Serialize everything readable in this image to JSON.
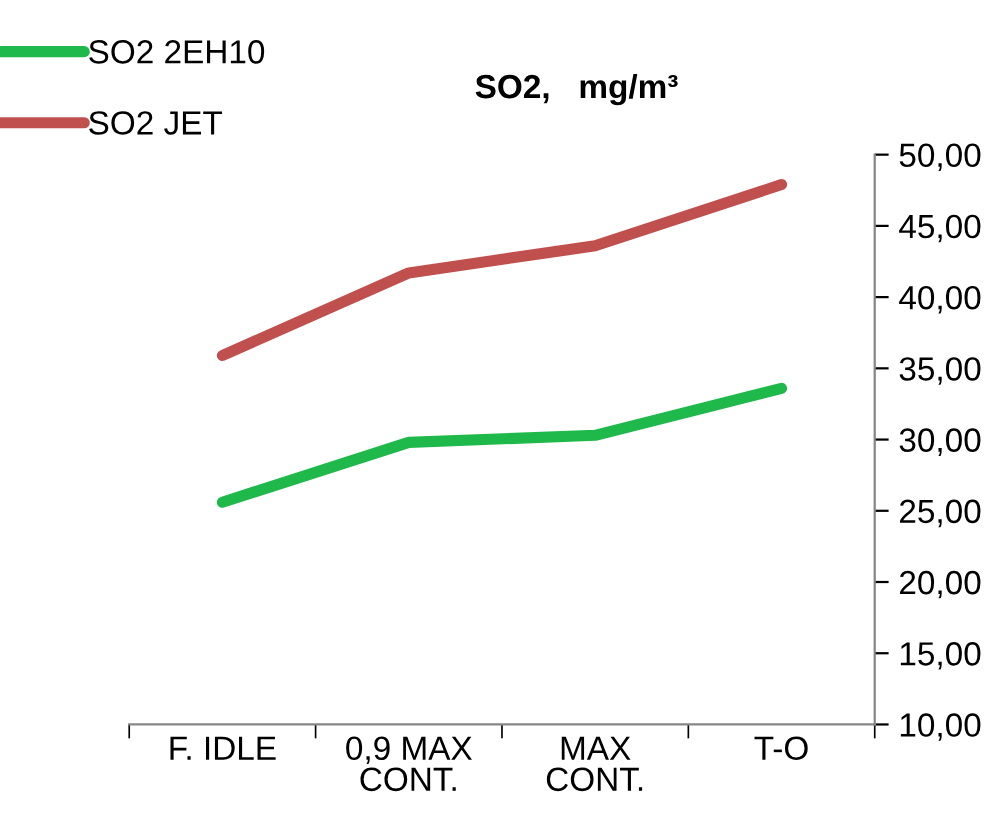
{
  "chart_data": {
    "type": "line",
    "title": "SO2,   mg/m³",
    "categories": [
      "F. IDLE",
      "0,9 MAX\nCONT.",
      "MAX\nCONT.",
      "T-O"
    ],
    "series": [
      {
        "name": "SO2 2EH10",
        "color": "#1fb84a",
        "values": [
          25.6,
          29.8,
          30.3,
          33.6
        ]
      },
      {
        "name": "SO2 JET",
        "color": "#c0504d",
        "values": [
          35.9,
          41.7,
          43.6,
          47.9
        ]
      }
    ],
    "ylim": [
      10,
      50
    ],
    "yticks": [
      {
        "value": 10,
        "label": "10,00"
      },
      {
        "value": 15,
        "label": "15,00"
      },
      {
        "value": 20,
        "label": "20,00"
      },
      {
        "value": 25,
        "label": "25,00"
      },
      {
        "value": 30,
        "label": "30,00"
      },
      {
        "value": 35,
        "label": "35,00"
      },
      {
        "value": 40,
        "label": "40,00"
      },
      {
        "value": 45,
        "label": "45,00"
      },
      {
        "value": 50,
        "label": "50,00"
      }
    ],
    "grid": false,
    "legend": "top left",
    "marker": "none",
    "line_style": "solid"
  }
}
